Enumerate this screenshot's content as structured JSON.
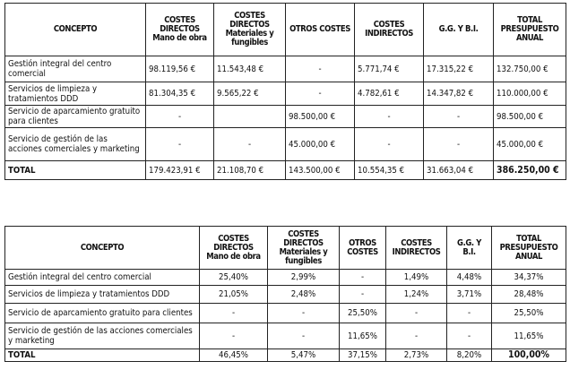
{
  "table_amounts": {
    "headers": [
      "CONCEPTO",
      "COSTES DIRECTOS Mano de obra",
      "COSTES DIRECTOS Materiales y fungibles",
      "OTROS COSTES",
      "COSTES INDIRECTOS",
      "G.G. Y B.I.",
      "TOTAL PRESUPUESTO ANUAL"
    ],
    "rows": [
      [
        "Gestión integral del centro comercial",
        "98.119,56 €",
        "11.543,48 €",
        "-",
        "5.771,74 €",
        "17.315,22 €",
        "132.750,00 €"
      ],
      [
        "Servicios de limpieza y tratamientos DDD",
        "81.304,35 €",
        "9.565,22 €",
        "-",
        "4.782,61 €",
        "14.347,82 €",
        "110.000,00 €"
      ],
      [
        "Servicio de aparcamiento gratuito para clientes",
        "-",
        "",
        "98.500,00 €",
        "-",
        "-",
        "98.500,00 €"
      ],
      [
        "Servicio de gestión de las acciones comerciales y marketing",
        "-",
        "-",
        "45.000,00 €",
        "-",
        "-",
        "45.000,00 €"
      ]
    ],
    "total": [
      "TOTAL",
      "179.423,91 €",
      "21.108,70 €",
      "143.500,00 €",
      "10.554,35 €",
      "31.663,04 €",
      "386.250,00 €"
    ]
  },
  "table_percent": {
    "headers": [
      "CONCEPTO",
      "COSTES DIRECTOS Mano de obra",
      "COSTES DIRECTOS Materiales y fungibles",
      "OTROS COSTES",
      "COSTES INDIRECTOS",
      "G.G. Y B.I.",
      "TOTAL PRESUPUESTO ANUAL"
    ],
    "rows": [
      [
        "Gestión integral del centro comercial",
        "25,40%",
        "2,99%",
        "-",
        "1,49%",
        "4,48%",
        "34,37%"
      ],
      [
        "Servicios de limpieza y tratamientos DDD",
        "21,05%",
        "2,48%",
        "-",
        "1,24%",
        "3,71%",
        "28,48%"
      ],
      [
        "Servicio de aparcamiento gratuito para clientes",
        "-",
        "-",
        "25,50%",
        "-",
        "-",
        "25,50%"
      ],
      [
        "Servicio de gestión de las acciones comerciales y marketing",
        "-",
        "-",
        "11,65%",
        "-",
        "-",
        "11,65%"
      ]
    ],
    "total": [
      "TOTAL",
      "46,45%",
      "5,47%",
      "37,15%",
      "2,73%",
      "8,20%",
      "100,00%"
    ]
  }
}
